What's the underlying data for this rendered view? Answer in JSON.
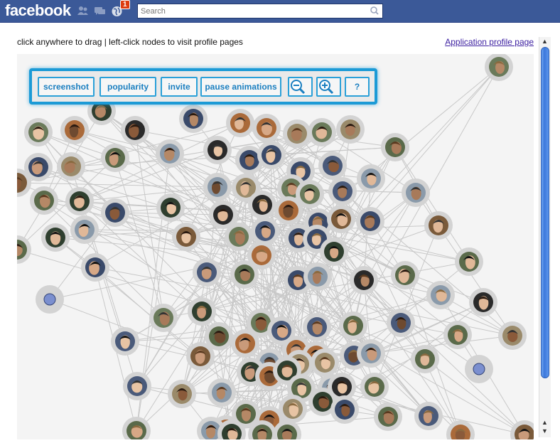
{
  "topbar": {
    "logo": "facebook",
    "notification_count": "1",
    "search_placeholder": "Search",
    "background": "#3b5998"
  },
  "page": {
    "instructions": "click anywhere to drag | left-click nodes to visit profile pages",
    "profile_link": "Application profile page"
  },
  "toolbar": {
    "screenshot": "screenshot",
    "popularity": "popularity",
    "invite": "invite",
    "pause": "pause animations",
    "help": "?",
    "zoom_out_icon": "zoom-out-icon",
    "zoom_in_icon": "zoom-in-icon",
    "accent": "#1b9ad6"
  },
  "graph": {
    "node_ring_color": "#d3d3d3",
    "edge_color": "#c8c8c8",
    "placeholder_node_color": "#7b8fcf"
  }
}
